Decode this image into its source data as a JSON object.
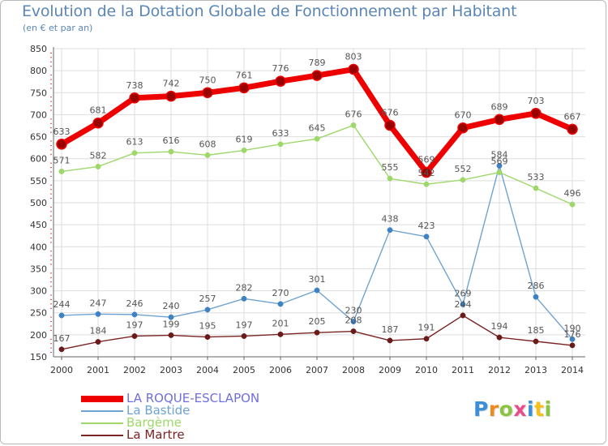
{
  "title": "Evolution de la Dotation Globale de Fonctionnement par Habitant",
  "subtitle": "(en € et par an)",
  "logo_text": "Proxiti",
  "colors": {
    "background": "#ffffff",
    "grid": "#dddddd",
    "axis": "#666666",
    "label": "#555555",
    "title": "#5b86b6"
  },
  "chart_data": {
    "type": "line",
    "title": "Evolution de la Dotation Globale de Fonctionnement par Habitant",
    "subtitle": "(en € et par an)",
    "xlabel": "",
    "ylabel": "",
    "ylim": [
      150,
      850
    ],
    "yticks": [
      150,
      200,
      250,
      300,
      350,
      400,
      450,
      500,
      550,
      600,
      650,
      700,
      750,
      800,
      850
    ],
    "grid": true,
    "legend_position": "bottom-left",
    "x": [
      "2000",
      "2001",
      "2002",
      "2003",
      "2004",
      "2005",
      "2006",
      "2007",
      "2008",
      "2009",
      "2010",
      "2011",
      "2012",
      "2013",
      "2014"
    ],
    "series": [
      {
        "name": "LA ROQUE-ESCLAPON",
        "key": "la-roque-esclapon",
        "color": "#ee0000",
        "marker_color": "#990000",
        "legend_color": "#6f6fe0",
        "emphasis": true,
        "values": [
          633,
          681,
          738,
          742,
          750,
          761,
          776,
          789,
          803,
          676,
          569,
          670,
          689,
          703,
          667
        ]
      },
      {
        "name": "La Bastide",
        "key": "la-bastide",
        "color": "#6fa3d1",
        "marker_color": "#3f82c4",
        "legend_color": "#6fa3d1",
        "emphasis": false,
        "values": [
          244,
          247,
          246,
          240,
          257,
          282,
          270,
          301,
          230,
          438,
          423,
          269,
          584,
          286,
          190
        ]
      },
      {
        "name": "Bargème",
        "key": "bargeme",
        "color": "#9ed86a",
        "marker_color": "#9ed86a",
        "legend_color": "#9ed86a",
        "emphasis": false,
        "values": [
          571,
          582,
          613,
          616,
          608,
          619,
          633,
          645,
          676,
          555,
          542,
          552,
          569,
          533,
          496
        ]
      },
      {
        "name": "La Martre",
        "key": "la-martre",
        "color": "#7a2424",
        "marker_color": "#6b1a1a",
        "legend_color": "#7a2424",
        "emphasis": false,
        "values": [
          167,
          184,
          197,
          199,
          195,
          197,
          201,
          205,
          208,
          187,
          191,
          244,
          194,
          185,
          176
        ]
      }
    ]
  }
}
